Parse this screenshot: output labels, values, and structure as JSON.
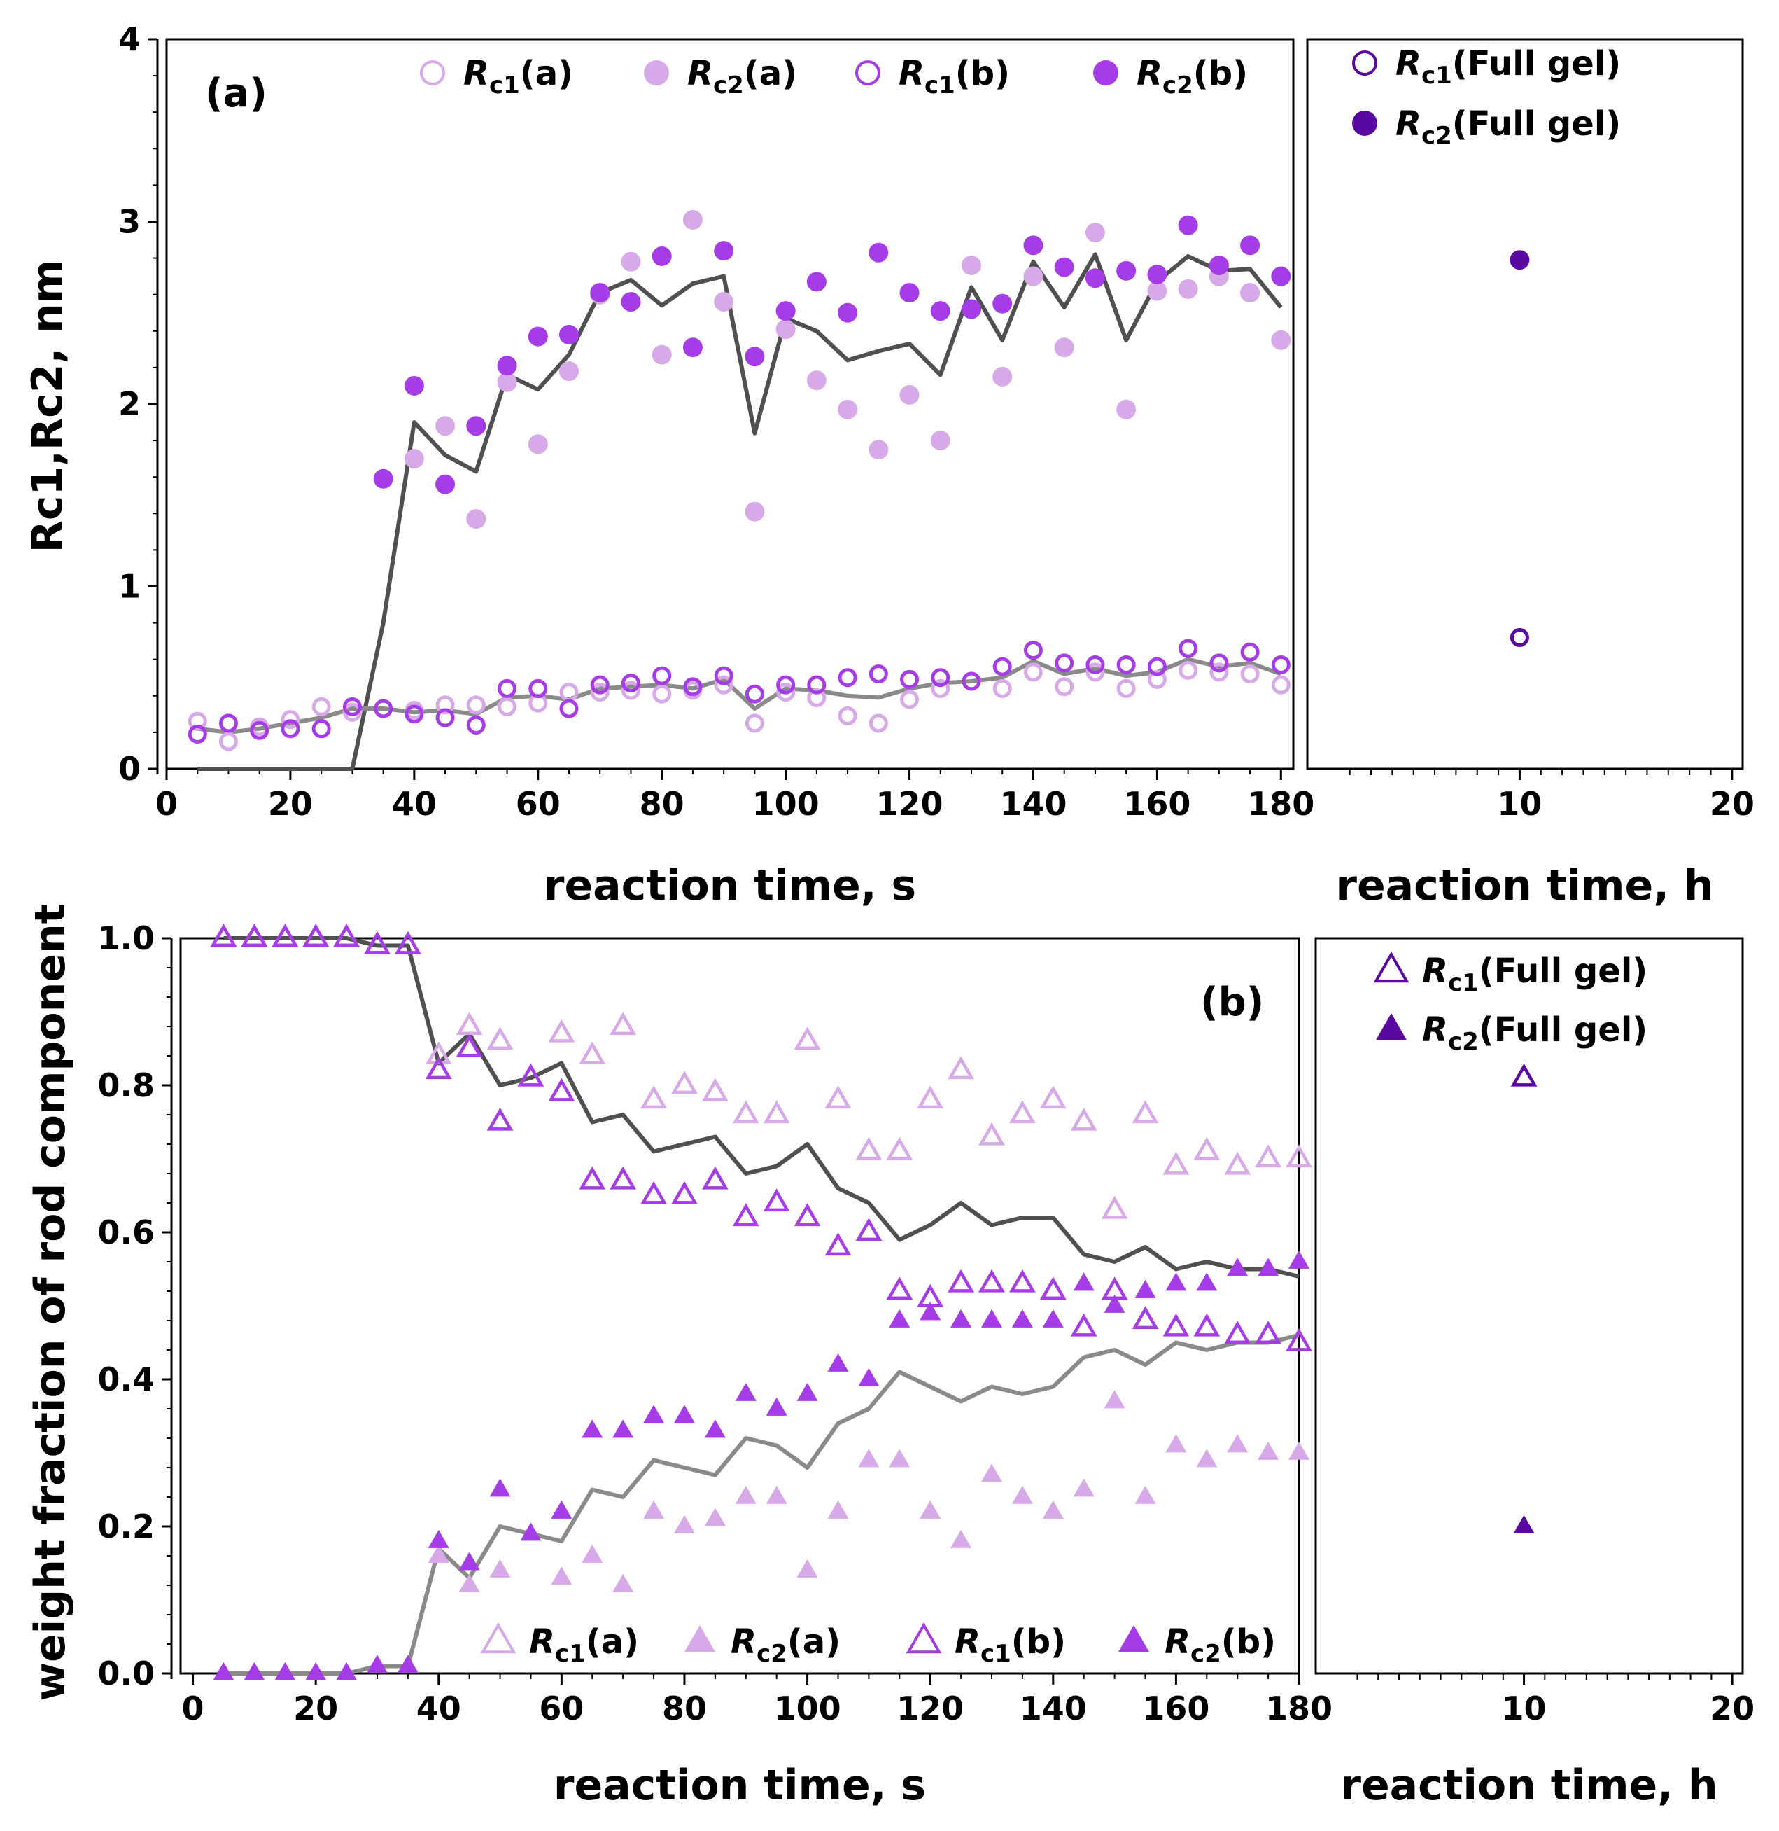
{
  "colors": {
    "light": "#d8a9e8",
    "med": "#a63ce8",
    "dark": "#5a08a2",
    "lineDark": "#505050",
    "lineLight": "#8a8a8a"
  },
  "chart_data": [
    {
      "id": "a",
      "type": "scatter",
      "panel_label": "(a)",
      "xlabel": "reaction time, s",
      "ylabel": "Rc1,Rc2, nm",
      "xlim": [
        0,
        182
      ],
      "ylim": [
        0,
        4
      ],
      "xticks": [
        0,
        20,
        40,
        60,
        80,
        100,
        120,
        140,
        160,
        180
      ],
      "yticks": [
        0,
        1,
        2,
        3,
        4
      ],
      "x": [
        5,
        10,
        15,
        20,
        25,
        30,
        35,
        40,
        45,
        50,
        55,
        60,
        65,
        70,
        75,
        80,
        85,
        90,
        95,
        100,
        105,
        110,
        115,
        120,
        125,
        130,
        135,
        140,
        145,
        150,
        155,
        160,
        165,
        170,
        175,
        180
      ],
      "series": [
        {
          "name": "Rc1(a)",
          "marker": "circle-open",
          "color": "light",
          "values": [
            0.26,
            0.15,
            0.23,
            0.27,
            0.34,
            0.31,
            0.33,
            0.32,
            0.35,
            0.35,
            0.34,
            0.36,
            0.42,
            0.42,
            0.43,
            0.41,
            0.43,
            0.46,
            0.25,
            0.42,
            0.39,
            0.29,
            0.25,
            0.38,
            0.44,
            0.48,
            0.44,
            0.53,
            0.45,
            0.53,
            0.44,
            0.49,
            0.54,
            0.53,
            0.52,
            0.46
          ]
        },
        {
          "name": "Rc2(a)",
          "marker": "circle-filled",
          "color": "light",
          "values": [
            null,
            null,
            null,
            null,
            null,
            null,
            null,
            1.7,
            1.88,
            1.37,
            2.12,
            1.78,
            2.18,
            2.6,
            2.78,
            2.27,
            3.01,
            2.56,
            1.41,
            2.41,
            2.13,
            1.97,
            1.75,
            2.05,
            1.8,
            2.76,
            2.15,
            2.7,
            2.31,
            2.94,
            1.97,
            2.62,
            2.63,
            2.7,
            2.61,
            2.35
          ]
        },
        {
          "name": "Rc1(b)",
          "marker": "circle-open",
          "color": "med",
          "values": [
            0.19,
            0.25,
            0.21,
            0.22,
            0.22,
            0.34,
            0.33,
            0.3,
            0.28,
            0.24,
            0.44,
            0.44,
            0.33,
            0.46,
            0.47,
            0.51,
            0.45,
            0.51,
            0.41,
            0.46,
            0.46,
            0.5,
            0.52,
            0.49,
            0.5,
            0.48,
            0.56,
            0.65,
            0.58,
            0.57,
            0.57,
            0.56,
            0.66,
            0.58,
            0.64,
            0.57
          ]
        },
        {
          "name": "Rc2(b)",
          "marker": "circle-filled",
          "color": "med",
          "values": [
            null,
            null,
            null,
            null,
            null,
            null,
            1.59,
            2.1,
            1.56,
            1.88,
            2.21,
            2.37,
            2.38,
            2.61,
            2.56,
            2.81,
            2.31,
            2.84,
            2.26,
            2.51,
            2.67,
            2.5,
            2.83,
            2.61,
            2.51,
            2.52,
            2.55,
            2.87,
            2.75,
            2.69,
            2.73,
            2.71,
            2.98,
            2.76,
            2.87,
            2.7
          ]
        }
      ],
      "lines": [
        {
          "name": "Rc2 average",
          "color": "lineDark",
          "values": [
            0,
            0,
            0,
            0,
            0,
            0,
            0.8,
            1.9,
            1.72,
            1.63,
            2.16,
            2.08,
            2.27,
            2.61,
            2.68,
            2.54,
            2.66,
            2.7,
            1.84,
            2.47,
            2.4,
            2.24,
            2.29,
            2.33,
            2.16,
            2.64,
            2.35,
            2.78,
            2.53,
            2.82,
            2.35,
            2.67,
            2.81,
            2.73,
            2.74,
            2.53
          ]
        },
        {
          "name": "Rc1 average",
          "color": "lineLight",
          "values": [
            0.22,
            0.2,
            0.22,
            0.25,
            0.28,
            0.33,
            0.33,
            0.31,
            0.32,
            0.3,
            0.39,
            0.4,
            0.38,
            0.44,
            0.45,
            0.46,
            0.44,
            0.49,
            0.33,
            0.44,
            0.43,
            0.4,
            0.39,
            0.44,
            0.47,
            0.48,
            0.5,
            0.59,
            0.52,
            0.55,
            0.51,
            0.53,
            0.6,
            0.56,
            0.58,
            0.52
          ]
        }
      ],
      "legend": [
        {
          "label": "R",
          "sub": "c1",
          "rest": "(a)"
        },
        {
          "label": "R",
          "sub": "c2",
          "rest": "(a)"
        },
        {
          "label": "R",
          "sub": "c1",
          "rest": "(b)"
        },
        {
          "label": "R",
          "sub": "c2",
          "rest": "(b)"
        }
      ]
    },
    {
      "id": "a-inset",
      "type": "scatter",
      "xlabel": "reaction time, h",
      "xlim": [
        0,
        20.5
      ],
      "ylim": [
        0,
        4
      ],
      "xticks": [
        10,
        20
      ],
      "series": [
        {
          "name": "Rc1(Full gel)",
          "marker": "circle-open",
          "color": "dark",
          "x": [
            10
          ],
          "values": [
            0.72
          ]
        },
        {
          "name": "Rc2(Full gel)",
          "marker": "circle-filled",
          "color": "dark",
          "x": [
            10
          ],
          "values": [
            2.79
          ]
        }
      ],
      "legend": [
        {
          "label": "R",
          "sub": "c1",
          "rest": "(Full gel)"
        },
        {
          "label": "R",
          "sub": "c2",
          "rest": "(Full gel)"
        }
      ]
    },
    {
      "id": "b",
      "type": "scatter",
      "panel_label": "(b)",
      "xlabel": "reaction time, s",
      "ylabel": "weight fraction of rod component",
      "xlim": [
        -2,
        180
      ],
      "ylim": [
        0,
        1
      ],
      "xticks": [
        0,
        20,
        40,
        60,
        80,
        100,
        120,
        140,
        160,
        180
      ],
      "yticks": [
        0.0,
        0.2,
        0.4,
        0.6,
        0.8,
        1.0
      ],
      "ytick_labels": [
        "0.0",
        "0.2",
        "0.4",
        "0.6",
        "0.8",
        "1.0"
      ],
      "x": [
        5,
        10,
        15,
        20,
        25,
        30,
        35,
        40,
        45,
        50,
        55,
        60,
        65,
        70,
        75,
        80,
        85,
        90,
        95,
        100,
        105,
        110,
        115,
        120,
        125,
        130,
        135,
        140,
        145,
        150,
        155,
        160,
        165,
        170,
        175,
        180
      ],
      "series": [
        {
          "name": "Rc1(a)",
          "marker": "triangle-open",
          "color": "light",
          "values": [
            1.0,
            1.0,
            1.0,
            1.0,
            1.0,
            0.99,
            0.99,
            0.84,
            0.88,
            0.86,
            0.81,
            0.87,
            0.84,
            0.88,
            0.78,
            0.8,
            0.79,
            0.76,
            0.76,
            0.86,
            0.78,
            0.71,
            0.71,
            0.78,
            0.82,
            0.73,
            0.76,
            0.78,
            0.75,
            0.63,
            0.76,
            0.69,
            0.71,
            0.69,
            0.7,
            0.7
          ]
        },
        {
          "name": "Rc2(a)",
          "marker": "triangle-filled",
          "color": "light",
          "values": [
            0,
            0,
            0,
            0,
            0,
            0.01,
            0.01,
            0.16,
            0.12,
            0.14,
            0.19,
            0.13,
            0.16,
            0.12,
            0.22,
            0.2,
            0.21,
            0.24,
            0.24,
            0.14,
            0.22,
            0.29,
            0.29,
            0.22,
            0.18,
            0.27,
            0.24,
            0.22,
            0.25,
            0.37,
            0.24,
            0.31,
            0.29,
            0.31,
            0.3,
            0.3
          ]
        },
        {
          "name": "Rc1(b)",
          "marker": "triangle-open",
          "color": "med",
          "values": [
            1.0,
            1.0,
            1.0,
            1.0,
            1.0,
            0.99,
            0.99,
            0.82,
            0.85,
            0.75,
            0.81,
            0.79,
            0.67,
            0.67,
            0.65,
            0.65,
            0.67,
            0.62,
            0.64,
            0.62,
            0.58,
            0.6,
            0.52,
            0.51,
            0.53,
            0.53,
            0.53,
            0.52,
            0.47,
            0.52,
            0.48,
            0.47,
            0.47,
            0.46,
            0.46,
            0.45
          ]
        },
        {
          "name": "Rc2(b)",
          "marker": "triangle-filled",
          "color": "med",
          "values": [
            0,
            0,
            0,
            0,
            0,
            0.01,
            0.01,
            0.18,
            0.15,
            0.25,
            0.19,
            0.22,
            0.33,
            0.33,
            0.35,
            0.35,
            0.33,
            0.38,
            0.36,
            0.38,
            0.42,
            0.4,
            0.48,
            0.49,
            0.48,
            0.48,
            0.48,
            0.48,
            0.53,
            0.5,
            0.52,
            0.53,
            0.53,
            0.55,
            0.55,
            0.56
          ]
        }
      ],
      "lines": [
        {
          "name": "Rc1 average",
          "color": "lineDark",
          "values": [
            1.0,
            1.0,
            1.0,
            1.0,
            1.0,
            0.99,
            0.99,
            0.83,
            0.87,
            0.8,
            0.81,
            0.83,
            0.75,
            0.76,
            0.71,
            0.72,
            0.73,
            0.68,
            0.69,
            0.72,
            0.66,
            0.64,
            0.59,
            0.61,
            0.64,
            0.61,
            0.62,
            0.62,
            0.57,
            0.56,
            0.58,
            0.55,
            0.56,
            0.55,
            0.55,
            0.54
          ]
        },
        {
          "name": "Rc2 average",
          "color": "lineLight",
          "values": [
            0,
            0,
            0,
            0,
            0,
            0.01,
            0.01,
            0.17,
            0.13,
            0.2,
            0.19,
            0.18,
            0.25,
            0.24,
            0.29,
            0.28,
            0.27,
            0.32,
            0.31,
            0.28,
            0.34,
            0.36,
            0.41,
            0.39,
            0.37,
            0.39,
            0.38,
            0.39,
            0.43,
            0.44,
            0.42,
            0.45,
            0.44,
            0.45,
            0.45,
            0.46
          ]
        }
      ],
      "legend": [
        {
          "label": "R",
          "sub": "c1",
          "rest": "(a)"
        },
        {
          "label": "R",
          "sub": "c2",
          "rest": "(a)"
        },
        {
          "label": "R",
          "sub": "c1",
          "rest": "(b)"
        },
        {
          "label": "R",
          "sub": "c2",
          "rest": "(b)"
        }
      ]
    },
    {
      "id": "b-inset",
      "type": "scatter",
      "xlabel": "reaction time, h",
      "xlim": [
        0,
        20.5
      ],
      "ylim": [
        0,
        1
      ],
      "xticks": [
        10,
        20
      ],
      "series": [
        {
          "name": "Rc1(Full gel)",
          "marker": "triangle-open",
          "color": "dark",
          "x": [
            10
          ],
          "values": [
            0.81
          ]
        },
        {
          "name": "Rc2(Full gel)",
          "marker": "triangle-filled",
          "color": "dark",
          "x": [
            10
          ],
          "values": [
            0.2
          ]
        }
      ],
      "legend": [
        {
          "label": "R",
          "sub": "c1",
          "rest": "(Full gel)"
        },
        {
          "label": "R",
          "sub": "c2",
          "rest": "(Full gel)"
        }
      ]
    }
  ]
}
